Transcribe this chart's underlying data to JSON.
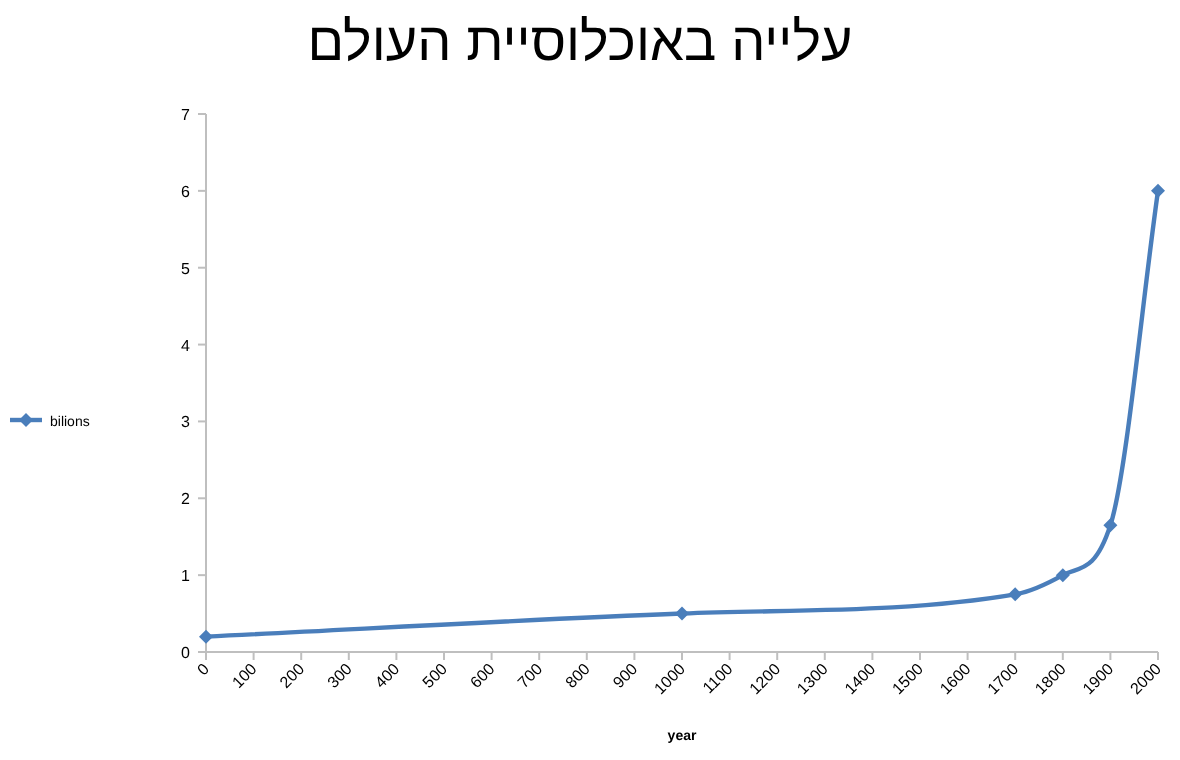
{
  "chart_data": {
    "type": "line",
    "title": "עלייה באוכלוסיית העולם",
    "xlabel": "year",
    "x": [
      0,
      1000,
      1700,
      1800,
      1900,
      2000
    ],
    "series": [
      {
        "name": "bilions",
        "color": "#4a7ebb",
        "values": [
          0.2,
          0.5,
          0.75,
          1,
          1.65,
          6
        ]
      }
    ],
    "xlim": [
      0,
      2000
    ],
    "xticks": [
      0,
      100,
      200,
      300,
      400,
      500,
      600,
      700,
      800,
      900,
      1000,
      1100,
      1200,
      1300,
      1400,
      1500,
      1600,
      1700,
      1800,
      1900,
      2000
    ],
    "ylim": [
      0,
      7
    ],
    "yticks": [
      0,
      1,
      2,
      3,
      4,
      5,
      6,
      7
    ],
    "marker": "diamond",
    "line_style": "solid",
    "legend": "left",
    "grid": false
  }
}
